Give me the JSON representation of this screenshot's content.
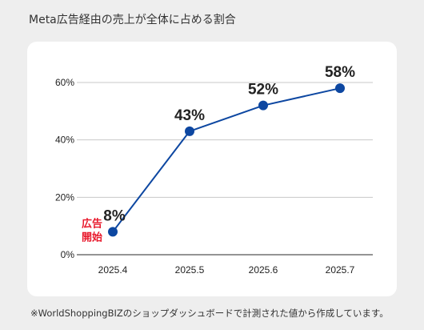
{
  "chart_data": {
    "type": "line",
    "title": "Meta広告経由の売上が全体に占める割合",
    "categories": [
      "2025.4",
      "2025.5",
      "2025.6",
      "2025.7"
    ],
    "series": [
      {
        "values": [
          8,
          43,
          52,
          58
        ]
      }
    ],
    "data_labels": [
      "8%",
      "43%",
      "52%",
      "58%"
    ],
    "ylim": [
      0,
      60
    ],
    "yticks": [
      0,
      20,
      40,
      60
    ],
    "ytick_labels": [
      "0%",
      "20%",
      "40%",
      "60%"
    ],
    "xlabel": "",
    "ylabel": "",
    "grid": true,
    "annotation": {
      "category": "2025.4",
      "lines": [
        "広告",
        "開始"
      ]
    },
    "colors": {
      "line": "#0d47a1",
      "marker": "#0d47a1",
      "annotation": "#e8192c",
      "grid": "#c8c8c8"
    }
  },
  "footnote": "※WorldShoppingBIZのショップダッシュボードで計測された値から作成しています。"
}
